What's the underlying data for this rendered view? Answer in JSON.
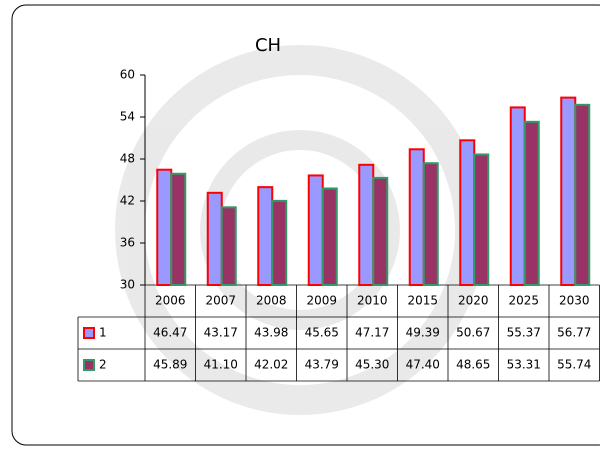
{
  "chart_data": {
    "type": "bar",
    "title": "CH",
    "categories": [
      "2006",
      "2007",
      "2008",
      "2009",
      "2010",
      "2015",
      "2020",
      "2025",
      "2030"
    ],
    "series": [
      {
        "name": "1",
        "color": "#9999ff",
        "border": "#ff0000",
        "values": [
          46.47,
          43.17,
          43.98,
          45.65,
          47.17,
          49.39,
          50.67,
          55.37,
          56.77
        ],
        "value_labels": [
          "46.47",
          "43.17",
          "43.98",
          "45.65",
          "47.17",
          "49.39",
          "50.67",
          "55.37",
          "56.77"
        ]
      },
      {
        "name": "2",
        "color": "#993366",
        "border": "#339966",
        "values": [
          45.89,
          41.1,
          42.02,
          43.79,
          45.3,
          47.4,
          48.65,
          53.31,
          55.74
        ],
        "value_labels": [
          "45.89",
          "41.10",
          "42.02",
          "43.79",
          "45.30",
          "47.40",
          "48.65",
          "53.31",
          "55.74"
        ]
      }
    ],
    "ylim": [
      30,
      60
    ],
    "yticks": [
      30,
      36,
      42,
      48,
      54,
      60
    ],
    "grid": false
  }
}
